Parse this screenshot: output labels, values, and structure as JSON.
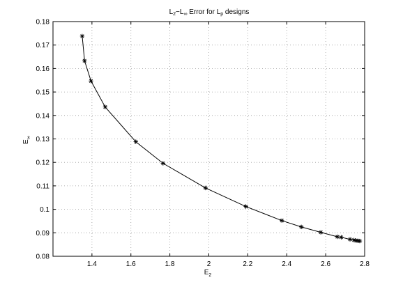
{
  "chart_data": {
    "type": "line",
    "title": {
      "base1": "L",
      "sub1": "2",
      "dash": "−",
      "base2": "L",
      "sub2": "∞",
      "mid": " Error for ",
      "base3": "L",
      "sub3": "p",
      "tail": " designs"
    },
    "xlabel": {
      "base": "E",
      "sub": "2"
    },
    "ylabel": {
      "base": "E",
      "sub": "∞"
    },
    "xlim": [
      1.2,
      2.8
    ],
    "ylim": [
      0.08,
      0.18
    ],
    "xticks": [
      1.4,
      1.6,
      1.8,
      2.0,
      2.2,
      2.4,
      2.6,
      2.8
    ],
    "xtick_labels": [
      "1.4",
      "1.6",
      "1.8",
      "2",
      "2.2",
      "2.4",
      "2.6",
      "2.8"
    ],
    "yticks": [
      0.08,
      0.09,
      0.1,
      0.11,
      0.12,
      0.13,
      0.14,
      0.15,
      0.16,
      0.17,
      0.18
    ],
    "ytick_labels": [
      "0.08",
      "0.09",
      "0.1",
      "0.11",
      "0.12",
      "0.13",
      "0.14",
      "0.15",
      "0.16",
      "0.17",
      "0.18"
    ],
    "grid": true,
    "marker": "*",
    "line_color": "#000000",
    "series": [
      {
        "x": [
          1.35,
          1.362,
          1.395,
          1.468,
          1.625,
          1.765,
          1.983,
          2.19,
          2.375,
          2.475,
          2.575,
          2.66,
          2.68,
          2.725,
          2.745,
          2.755,
          2.765,
          2.775
        ],
        "y": [
          0.1738,
          0.1633,
          0.1547,
          0.1436,
          0.1288,
          0.1196,
          0.1091,
          0.1012,
          0.0952,
          0.0925,
          0.0902,
          0.0883,
          0.0881,
          0.0872,
          0.0869,
          0.0867,
          0.0866,
          0.0865
        ]
      }
    ]
  }
}
